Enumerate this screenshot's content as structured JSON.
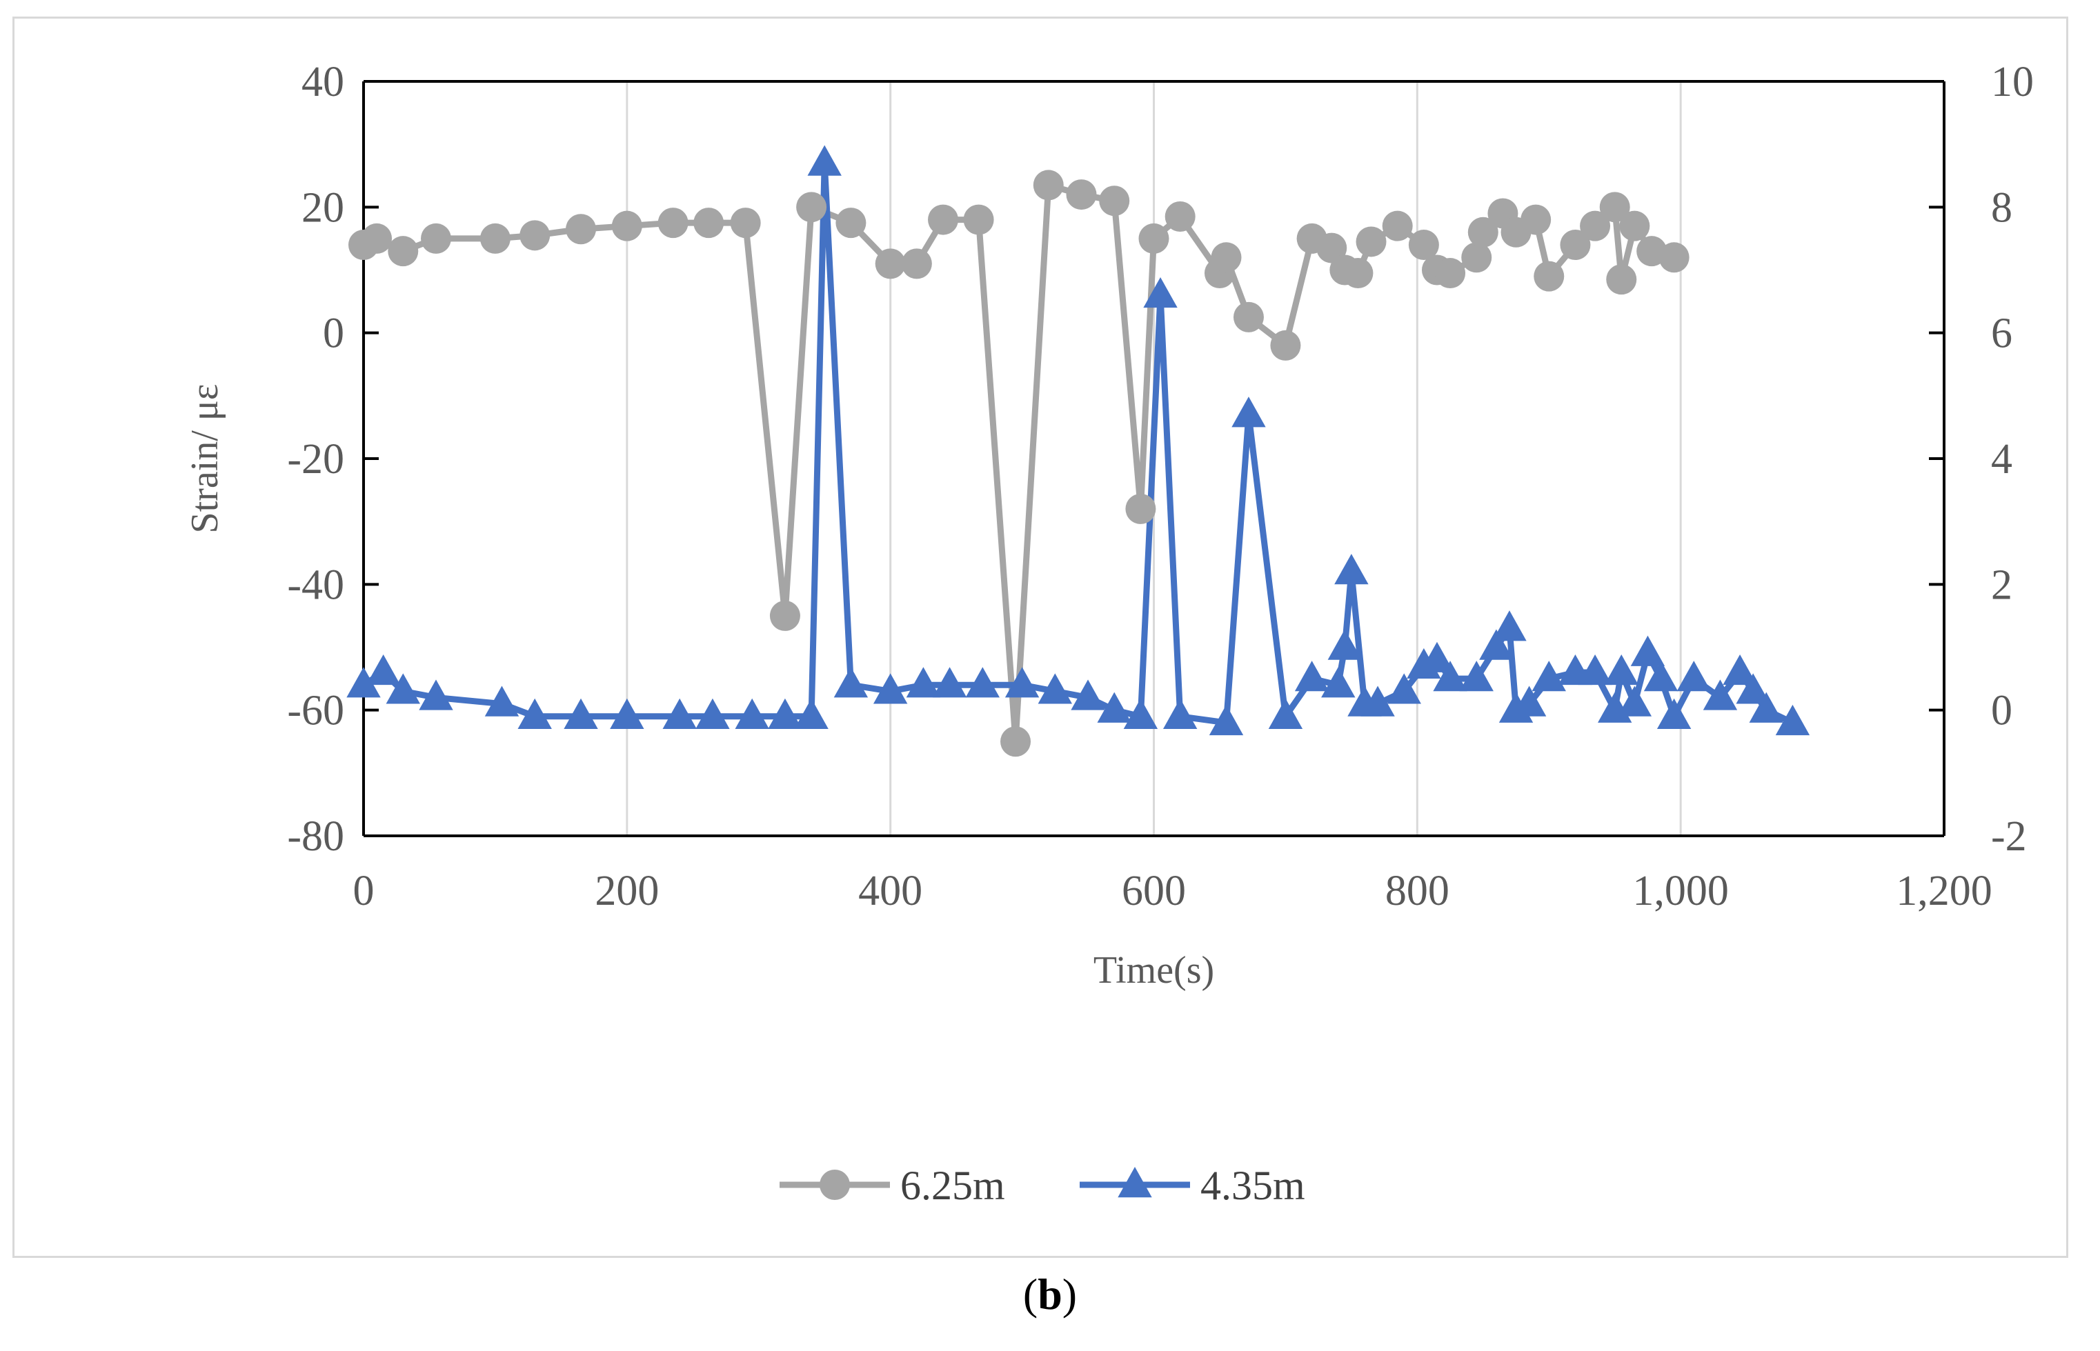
{
  "chart_data": {
    "type": "line",
    "title": "",
    "xlabel": "Time(s)",
    "ylabel": "Strain/ με",
    "xlim": [
      0,
      1200
    ],
    "ylim_left": [
      -80,
      40
    ],
    "ylim_right": [
      -2,
      10
    ],
    "x_ticks": [
      "0",
      "200",
      "400",
      "600",
      "800",
      "1,000",
      "1,200"
    ],
    "y_ticks_left": [
      "-80",
      "-60",
      "-40",
      "-20",
      "0",
      "20",
      "40"
    ],
    "y_ticks_right": [
      "-2",
      "0",
      "2",
      "4",
      "6",
      "8",
      "10"
    ],
    "grid": "vertical",
    "legend_position": "bottom",
    "series": [
      {
        "name": "6.25m",
        "axis": "left",
        "color": "#a5a5a5",
        "marker": "circle",
        "x": [
          0,
          10,
          30,
          55,
          100,
          130,
          165,
          200,
          235,
          262,
          290,
          320,
          340,
          370,
          400,
          420,
          440,
          467,
          495,
          520,
          545,
          570,
          590,
          600,
          620,
          650,
          655,
          672,
          700,
          720,
          735,
          745,
          755,
          765,
          785,
          805,
          815,
          825,
          845,
          850,
          865,
          875,
          890,
          900,
          920,
          935,
          950,
          955,
          965,
          978,
          995
        ],
        "y": [
          14,
          15,
          13,
          15,
          15,
          15.5,
          16.5,
          17,
          17.5,
          17.5,
          17.5,
          -45,
          20,
          17.5,
          11,
          11,
          18,
          18,
          -65,
          23.5,
          22,
          21,
          -28,
          15,
          18.5,
          9.5,
          12,
          2.5,
          -2,
          15,
          13.5,
          10,
          9.5,
          14.5,
          17,
          14,
          10,
          9.5,
          12,
          16,
          19,
          16,
          18,
          9,
          14,
          17,
          20,
          8.5,
          17,
          13,
          12
        ]
      },
      {
        "name": "4.35m",
        "axis": "right",
        "color": "#4472c4",
        "marker": "triangle",
        "x": [
          0,
          15,
          30,
          55,
          105,
          130,
          165,
          200,
          240,
          265,
          295,
          320,
          340,
          350,
          370,
          400,
          425,
          445,
          470,
          500,
          525,
          550,
          570,
          590,
          605,
          620,
          655,
          672,
          700,
          720,
          740,
          745,
          750,
          760,
          770,
          790,
          805,
          815,
          825,
          845,
          860,
          870,
          875,
          885,
          900,
          920,
          935,
          950,
          955,
          965,
          975,
          985,
          995,
          1010,
          1030,
          1045,
          1055,
          1065,
          1085
        ],
        "y": [
          0.4,
          0.6,
          0.3,
          0.2,
          0.1,
          -0.1,
          -0.1,
          -0.1,
          -0.1,
          -0.1,
          -0.1,
          -0.1,
          -0.1,
          8.7,
          0.4,
          0.3,
          0.4,
          0.4,
          0.4,
          0.4,
          0.3,
          0.2,
          0,
          -0.1,
          6.6,
          -0.1,
          -0.2,
          4.7,
          -0.1,
          0.5,
          0.4,
          1,
          2.2,
          0.1,
          0.1,
          0.3,
          0.7,
          0.8,
          0.5,
          0.5,
          1,
          1.3,
          0,
          0.1,
          0.5,
          0.6,
          0.6,
          0,
          0.6,
          0.1,
          0.9,
          0.5,
          -0.1,
          0.5,
          0.2,
          0.6,
          0.3,
          0,
          -0.2
        ]
      }
    ]
  },
  "caption": {
    "open": "(",
    "letter": "b",
    "close": ")"
  }
}
